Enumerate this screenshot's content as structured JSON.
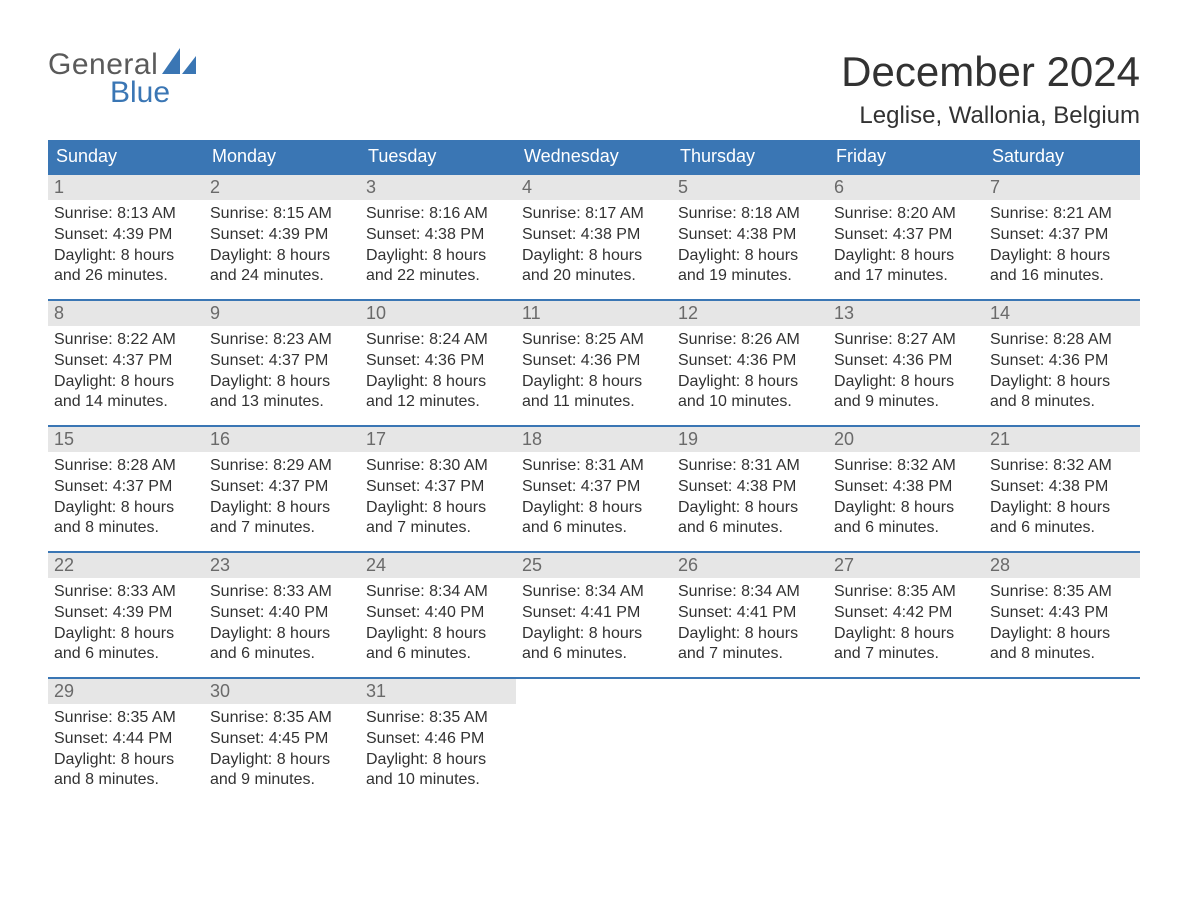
{
  "brand": {
    "word1": "General",
    "word2": "Blue"
  },
  "colors": {
    "brand_blue": "#3a76b4",
    "header_blue": "#3a76b4",
    "divider_blue": "#3a76b4",
    "daynum_bg": "#e6e6e6",
    "text": "#323232",
    "page_bg": "#ffffff"
  },
  "header": {
    "month_title": "December 2024",
    "location": "Leglise, Wallonia, Belgium"
  },
  "calendar": {
    "type": "table",
    "columns": [
      "Sunday",
      "Monday",
      "Tuesday",
      "Wednesday",
      "Thursday",
      "Friday",
      "Saturday"
    ],
    "column_fontsize": 18,
    "body_fontsize": 16,
    "daynum_fontsize": 18,
    "weeks": [
      [
        {
          "n": "1",
          "sunrise": "8:13 AM",
          "sunset": "4:39 PM",
          "daylight": "8 hours and 26 minutes."
        },
        {
          "n": "2",
          "sunrise": "8:15 AM",
          "sunset": "4:39 PM",
          "daylight": "8 hours and 24 minutes."
        },
        {
          "n": "3",
          "sunrise": "8:16 AM",
          "sunset": "4:38 PM",
          "daylight": "8 hours and 22 minutes."
        },
        {
          "n": "4",
          "sunrise": "8:17 AM",
          "sunset": "4:38 PM",
          "daylight": "8 hours and 20 minutes."
        },
        {
          "n": "5",
          "sunrise": "8:18 AM",
          "sunset": "4:38 PM",
          "daylight": "8 hours and 19 minutes."
        },
        {
          "n": "6",
          "sunrise": "8:20 AM",
          "sunset": "4:37 PM",
          "daylight": "8 hours and 17 minutes."
        },
        {
          "n": "7",
          "sunrise": "8:21 AM",
          "sunset": "4:37 PM",
          "daylight": "8 hours and 16 minutes."
        }
      ],
      [
        {
          "n": "8",
          "sunrise": "8:22 AM",
          "sunset": "4:37 PM",
          "daylight": "8 hours and 14 minutes."
        },
        {
          "n": "9",
          "sunrise": "8:23 AM",
          "sunset": "4:37 PM",
          "daylight": "8 hours and 13 minutes."
        },
        {
          "n": "10",
          "sunrise": "8:24 AM",
          "sunset": "4:36 PM",
          "daylight": "8 hours and 12 minutes."
        },
        {
          "n": "11",
          "sunrise": "8:25 AM",
          "sunset": "4:36 PM",
          "daylight": "8 hours and 11 minutes."
        },
        {
          "n": "12",
          "sunrise": "8:26 AM",
          "sunset": "4:36 PM",
          "daylight": "8 hours and 10 minutes."
        },
        {
          "n": "13",
          "sunrise": "8:27 AM",
          "sunset": "4:36 PM",
          "daylight": "8 hours and 9 minutes."
        },
        {
          "n": "14",
          "sunrise": "8:28 AM",
          "sunset": "4:36 PM",
          "daylight": "8 hours and 8 minutes."
        }
      ],
      [
        {
          "n": "15",
          "sunrise": "8:28 AM",
          "sunset": "4:37 PM",
          "daylight": "8 hours and 8 minutes."
        },
        {
          "n": "16",
          "sunrise": "8:29 AM",
          "sunset": "4:37 PM",
          "daylight": "8 hours and 7 minutes."
        },
        {
          "n": "17",
          "sunrise": "8:30 AM",
          "sunset": "4:37 PM",
          "daylight": "8 hours and 7 minutes."
        },
        {
          "n": "18",
          "sunrise": "8:31 AM",
          "sunset": "4:37 PM",
          "daylight": "8 hours and 6 minutes."
        },
        {
          "n": "19",
          "sunrise": "8:31 AM",
          "sunset": "4:38 PM",
          "daylight": "8 hours and 6 minutes."
        },
        {
          "n": "20",
          "sunrise": "8:32 AM",
          "sunset": "4:38 PM",
          "daylight": "8 hours and 6 minutes."
        },
        {
          "n": "21",
          "sunrise": "8:32 AM",
          "sunset": "4:38 PM",
          "daylight": "8 hours and 6 minutes."
        }
      ],
      [
        {
          "n": "22",
          "sunrise": "8:33 AM",
          "sunset": "4:39 PM",
          "daylight": "8 hours and 6 minutes."
        },
        {
          "n": "23",
          "sunrise": "8:33 AM",
          "sunset": "4:40 PM",
          "daylight": "8 hours and 6 minutes."
        },
        {
          "n": "24",
          "sunrise": "8:34 AM",
          "sunset": "4:40 PM",
          "daylight": "8 hours and 6 minutes."
        },
        {
          "n": "25",
          "sunrise": "8:34 AM",
          "sunset": "4:41 PM",
          "daylight": "8 hours and 6 minutes."
        },
        {
          "n": "26",
          "sunrise": "8:34 AM",
          "sunset": "4:41 PM",
          "daylight": "8 hours and 7 minutes."
        },
        {
          "n": "27",
          "sunrise": "8:35 AM",
          "sunset": "4:42 PM",
          "daylight": "8 hours and 7 minutes."
        },
        {
          "n": "28",
          "sunrise": "8:35 AM",
          "sunset": "4:43 PM",
          "daylight": "8 hours and 8 minutes."
        }
      ],
      [
        {
          "n": "29",
          "sunrise": "8:35 AM",
          "sunset": "4:44 PM",
          "daylight": "8 hours and 8 minutes."
        },
        {
          "n": "30",
          "sunrise": "8:35 AM",
          "sunset": "4:45 PM",
          "daylight": "8 hours and 9 minutes."
        },
        {
          "n": "31",
          "sunrise": "8:35 AM",
          "sunset": "4:46 PM",
          "daylight": "8 hours and 10 minutes."
        },
        null,
        null,
        null,
        null
      ]
    ],
    "labels": {
      "sunrise": "Sunrise: ",
      "sunset": "Sunset: ",
      "daylight": "Daylight: "
    }
  }
}
